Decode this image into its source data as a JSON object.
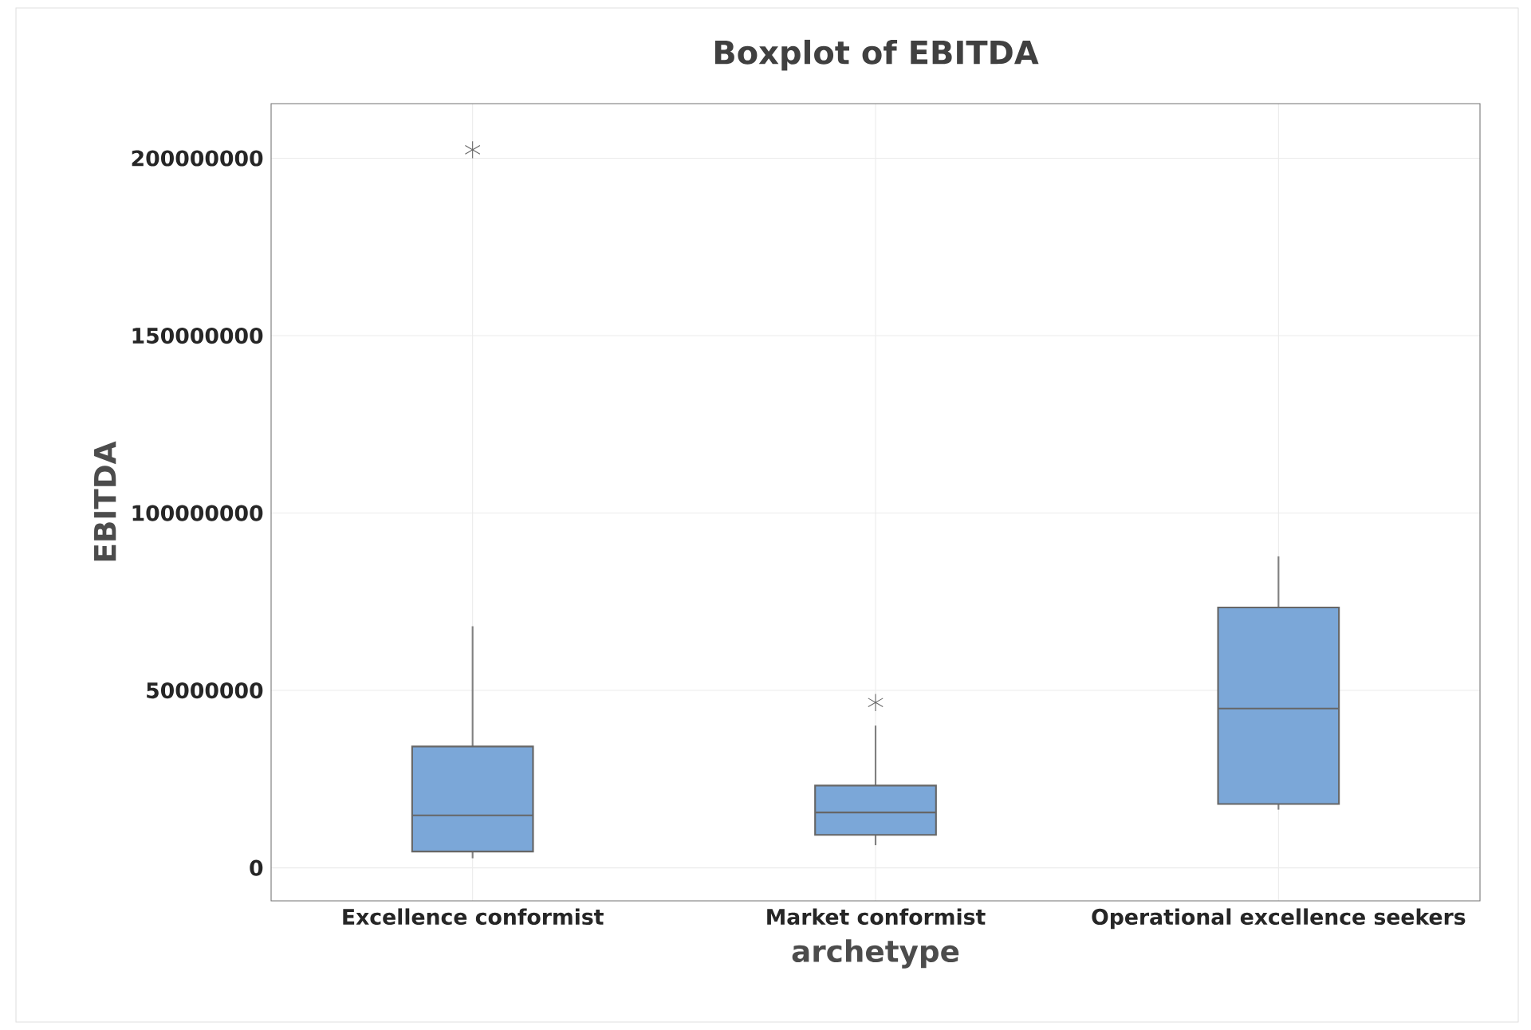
{
  "chart_data": {
    "type": "box",
    "title": "Boxplot of EBITDA",
    "xlabel": "archetype",
    "ylabel": "EBITDA",
    "categories": [
      "Excellence conformist",
      "Market conformist",
      "Operational excellence seekers"
    ],
    "boxes": [
      {
        "low": 2700000,
        "q1": 4600000,
        "median": 14800000,
        "q3": 34200000,
        "high": 68100000,
        "outliers": [
          202400000
        ]
      },
      {
        "low": 6400000,
        "q1": 9300000,
        "median": 15600000,
        "q3": 23200000,
        "high": 40100000,
        "outliers": [
          46600000
        ]
      },
      {
        "low": 16400000,
        "q1": 18000000,
        "median": 44900000,
        "q3": 73400000,
        "high": 87800000
      }
    ],
    "color": "#7ba7d8",
    "ylim": [
      -9300000,
      215400000
    ],
    "yticks": [
      0,
      50000000,
      100000000,
      150000000,
      200000000
    ],
    "grid": true
  }
}
